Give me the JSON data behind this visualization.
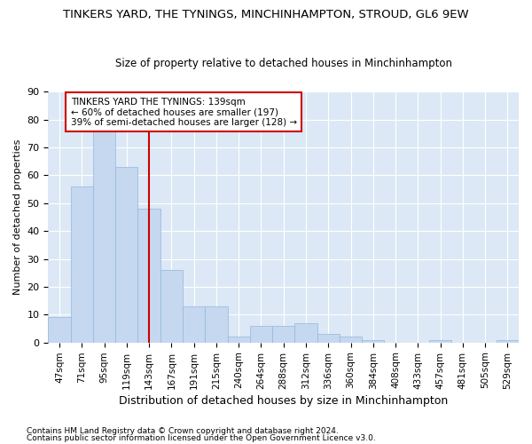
{
  "title": "TINKERS YARD, THE TYNINGS, MINCHINHAMPTON, STROUD, GL6 9EW",
  "subtitle": "Size of property relative to detached houses in Minchinhampton",
  "xlabel": "Distribution of detached houses by size in Minchinhampton",
  "ylabel": "Number of detached properties",
  "categories": [
    "47sqm",
    "71sqm",
    "95sqm",
    "119sqm",
    "143sqm",
    "167sqm",
    "191sqm",
    "215sqm",
    "240sqm",
    "264sqm",
    "288sqm",
    "312sqm",
    "336sqm",
    "360sqm",
    "384sqm",
    "408sqm",
    "433sqm",
    "457sqm",
    "481sqm",
    "505sqm",
    "529sqm"
  ],
  "values": [
    9,
    56,
    76,
    63,
    48,
    26,
    13,
    13,
    2,
    6,
    6,
    7,
    3,
    2,
    1,
    0,
    0,
    1,
    0,
    0,
    1
  ],
  "bar_color": "#c5d8f0",
  "bar_edge_color": "#92b8db",
  "vline_x_index": 4,
  "vline_color": "#cc0000",
  "annotation_text": "TINKERS YARD THE TYNINGS: 139sqm\n← 60% of detached houses are smaller (197)\n39% of semi-detached houses are larger (128) →",
  "annotation_box_color": "white",
  "annotation_box_edge_color": "#cc0000",
  "ylim": [
    0,
    90
  ],
  "yticks": [
    0,
    10,
    20,
    30,
    40,
    50,
    60,
    70,
    80,
    90
  ],
  "bg_color": "#dce8f5",
  "grid_color": "white",
  "title_fontsize": 9.5,
  "subtitle_fontsize": 8.5,
  "footer1": "Contains HM Land Registry data © Crown copyright and database right 2024.",
  "footer2": "Contains public sector information licensed under the Open Government Licence v3.0."
}
